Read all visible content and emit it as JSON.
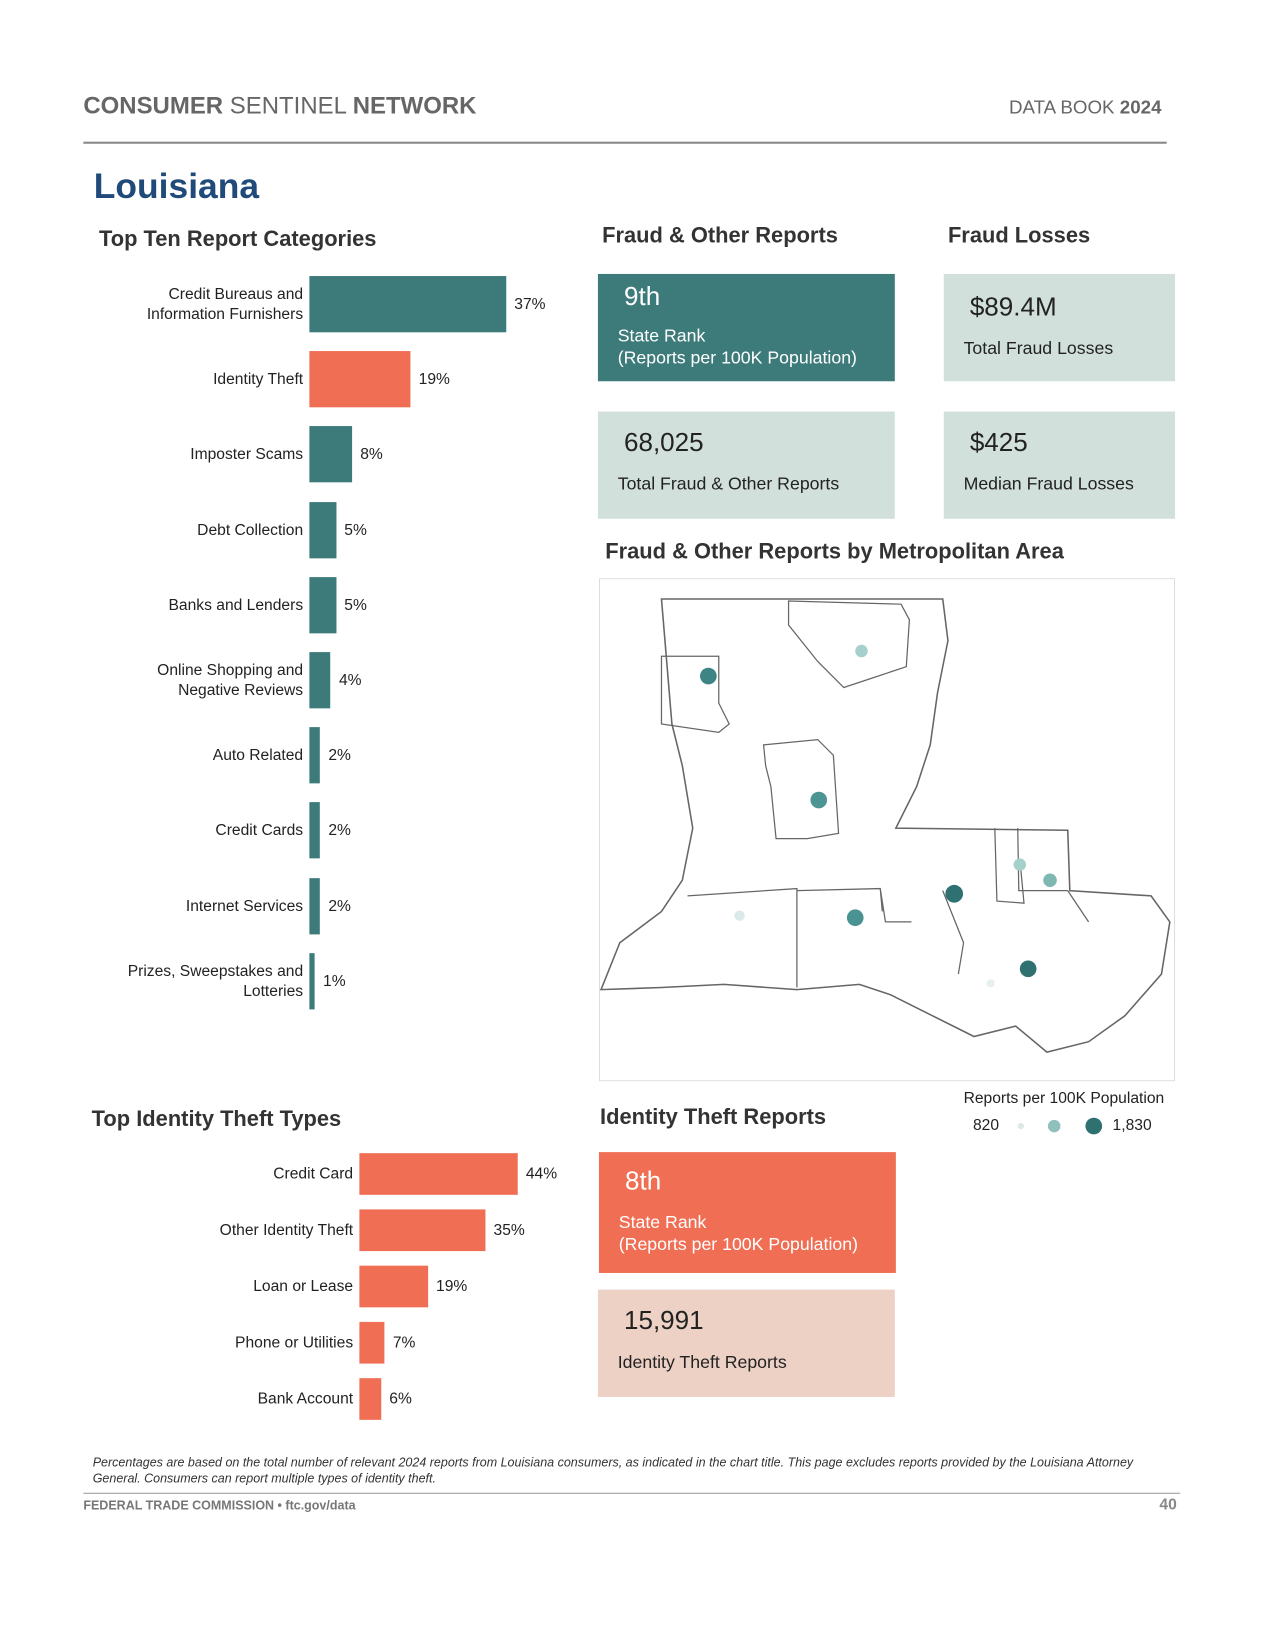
{
  "header": {
    "brand_1": "CONSUMER",
    "brand_2": "SENTINEL",
    "brand_3": "NETWORK",
    "book": "DATA BOOK",
    "year": "2024"
  },
  "state": "Louisiana",
  "top_ten": {
    "title": "Top Ten Report Categories",
    "categories": [
      "Credit Bureaus and Information Furnishers",
      "Identity Theft",
      "Imposter Scams",
      "Debt Collection",
      "Banks and Lenders",
      "Online Shopping and Negative Reviews",
      "Auto Related",
      "Credit Cards",
      "Internet Services",
      "Prizes, Sweepstakes and Lotteries"
    ],
    "values": [
      37,
      19,
      8,
      5,
      5,
      4,
      2,
      2,
      2,
      1
    ],
    "value_labels": [
      "37%",
      "19%",
      "8%",
      "5%",
      "5%",
      "4%",
      "2%",
      "2%",
      "2%",
      "1%"
    ],
    "colors": [
      "#3d7b7b",
      "#ef6e54",
      "#3d7b7b",
      "#3d7b7b",
      "#3d7b7b",
      "#3d7b7b",
      "#3d7b7b",
      "#3d7b7b",
      "#3d7b7b",
      "#3d7b7b"
    ]
  },
  "fraud_reports": {
    "title": "Fraud & Other Reports",
    "rank": "9th",
    "rank_label": "State Rank",
    "rank_note": "(Reports per 100K Population)",
    "total": "68,025",
    "total_label": "Total Fraud & Other Reports"
  },
  "fraud_losses": {
    "title": "Fraud Losses",
    "total": "$89.4M",
    "total_label": "Total Fraud Losses",
    "median": "$425",
    "median_label": "Median Fraud Losses"
  },
  "map": {
    "title": "Fraud & Other Reports by Metropolitan Area",
    "legend_title": "Reports per 100K Population",
    "legend_min": "820",
    "legend_max": "1,830"
  },
  "identity_types": {
    "title": "Top Identity Theft Types",
    "categories": [
      "Credit Card",
      "Other Identity Theft",
      "Loan or Lease",
      "Phone or Utilities",
      "Bank Account"
    ],
    "values": [
      44,
      35,
      19,
      7,
      6
    ],
    "value_labels": [
      "44%",
      "35%",
      "19%",
      "7%",
      "6%"
    ],
    "color": "#ef6e54"
  },
  "identity_reports": {
    "title": "Identity Theft Reports",
    "rank": "8th",
    "rank_label": "State Rank",
    "rank_note": "(Reports per 100K Population)",
    "total": "15,991",
    "total_label": "Identity Theft Reports"
  },
  "footnote": "Percentages are based on the total number of relevant 2024 reports from Louisiana consumers, as indicated in the chart title.  This page excludes reports provided by the Louisiana Attorney General.  Consumers can report multiple types of identity theft.",
  "footer": {
    "agency": "FEDERAL TRADE COMMISSION • ftc.gov/data",
    "page": "40"
  }
}
